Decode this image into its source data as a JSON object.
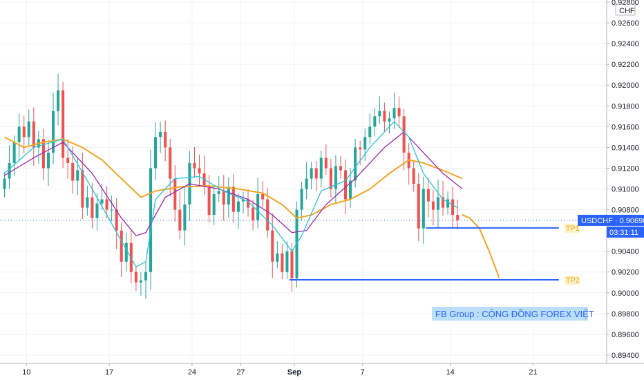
{
  "chart_data": {
    "type": "candlestick",
    "symbol": "USDCHF",
    "currency": "CHF",
    "ylim": [
      0.8932,
      0.9282
    ],
    "y_ticks": [
      "0.92800",
      "0.92600",
      "0.92400",
      "0.92200",
      "0.92000",
      "0.91800",
      "0.91600",
      "0.91400",
      "0.91200",
      "0.91000",
      "0.90800",
      "0.90400",
      "0.90200",
      "0.90000",
      "0.89800",
      "0.89600",
      "0.89400"
    ],
    "x_ticks": [
      {
        "label": "10",
        "bar": 5,
        "bold": false
      },
      {
        "label": "17",
        "bar": 22,
        "bold": false
      },
      {
        "label": "24",
        "bar": 39,
        "bold": false
      },
      {
        "label": "27",
        "bar": 49,
        "bold": false
      },
      {
        "label": "Sep",
        "bar": 60,
        "bold": true
      },
      {
        "label": "7",
        "bar": 74,
        "bold": false
      },
      {
        "label": "14",
        "bar": 92,
        "bold": false
      },
      {
        "label": "21",
        "bar": 109,
        "bold": false
      }
    ],
    "price_label": "USDCHF · 0.90698",
    "price_value": 0.90698,
    "countdown": "03:31:11",
    "colors": {
      "up": "#26a69a",
      "down": "#ef5350",
      "ema_fast": "#26c6da",
      "ema_mid": "#9c27b0",
      "ema_slow": "#f5a623",
      "levels": "#2962ff",
      "label_bg": "#2962ff"
    },
    "closes": [
      0.911,
      0.9125,
      0.9145,
      0.916,
      0.915,
      0.9165,
      0.914,
      0.9148,
      0.912,
      0.9135,
      0.9175,
      0.9195,
      0.913,
      0.9125,
      0.9108,
      0.9118,
      0.9082,
      0.9092,
      0.9072,
      0.9086,
      0.909,
      0.908,
      0.908,
      0.906,
      0.903,
      0.9048,
      0.902,
      0.901,
      0.9012,
      0.902,
      0.912,
      0.915,
      0.9155,
      0.914,
      0.911,
      0.908,
      0.906,
      0.9085,
      0.9125,
      0.912,
      0.9115,
      0.9102,
      0.9075,
      0.9095,
      0.9098,
      0.9085,
      0.9102,
      0.9078,
      0.9088,
      0.909,
      0.9082,
      0.907,
      0.9095,
      0.909,
      0.906,
      0.903,
      0.9038,
      0.902,
      0.904,
      0.9014,
      0.908,
      0.91,
      0.911,
      0.912,
      0.911,
      0.913,
      0.912,
      0.91,
      0.9122,
      0.9118,
      0.909,
      0.9108,
      0.914,
      0.9138,
      0.915,
      0.916,
      0.917,
      0.9175,
      0.9165,
      0.9168,
      0.9178,
      0.917,
      0.9135,
      0.912,
      0.9105,
      0.9062,
      0.91,
      0.9088,
      0.908,
      0.9092,
      0.9082,
      0.909,
      0.9075,
      0.907
    ],
    "ema_fast": [
      [
        0,
        0.9115
      ],
      [
        6,
        0.914
      ],
      [
        12,
        0.9148
      ],
      [
        18,
        0.91
      ],
      [
        24,
        0.905
      ],
      [
        27,
        0.9025
      ],
      [
        29,
        0.903
      ],
      [
        31,
        0.909
      ],
      [
        35,
        0.911
      ],
      [
        40,
        0.9112
      ],
      [
        45,
        0.9098
      ],
      [
        50,
        0.9088
      ],
      [
        55,
        0.9065
      ],
      [
        59,
        0.904
      ],
      [
        61,
        0.9055
      ],
      [
        65,
        0.9098
      ],
      [
        70,
        0.9108
      ],
      [
        75,
        0.914
      ],
      [
        80,
        0.9165
      ],
      [
        83,
        0.915
      ],
      [
        86,
        0.9115
      ],
      [
        90,
        0.909
      ],
      [
        93,
        0.9082
      ]
    ],
    "ema_mid": [
      [
        0,
        0.9113
      ],
      [
        6,
        0.913
      ],
      [
        12,
        0.9145
      ],
      [
        18,
        0.9115
      ],
      [
        24,
        0.9072
      ],
      [
        27,
        0.9055
      ],
      [
        29,
        0.9058
      ],
      [
        33,
        0.9092
      ],
      [
        38,
        0.9105
      ],
      [
        44,
        0.91
      ],
      [
        50,
        0.909
      ],
      [
        55,
        0.9075
      ],
      [
        59,
        0.9058
      ],
      [
        62,
        0.906
      ],
      [
        66,
        0.9085
      ],
      [
        72,
        0.911
      ],
      [
        78,
        0.914
      ],
      [
        82,
        0.9155
      ],
      [
        85,
        0.914
      ],
      [
        90,
        0.9115
      ],
      [
        94,
        0.91
      ]
    ],
    "ema_slow": [
      [
        0,
        0.915
      ],
      [
        4,
        0.914
      ],
      [
        8,
        0.9145
      ],
      [
        12,
        0.9148
      ],
      [
        16,
        0.914
      ],
      [
        20,
        0.9128
      ],
      [
        24,
        0.911
      ],
      [
        28,
        0.9092
      ],
      [
        31,
        0.9098
      ],
      [
        36,
        0.9102
      ],
      [
        42,
        0.9103
      ],
      [
        48,
        0.91
      ],
      [
        53,
        0.9096
      ],
      [
        57,
        0.9085
      ],
      [
        60,
        0.9072
      ],
      [
        63,
        0.9075
      ],
      [
        67,
        0.9085
      ],
      [
        71,
        0.909
      ],
      [
        75,
        0.91
      ],
      [
        79,
        0.9115
      ],
      [
        83,
        0.9128
      ],
      [
        86,
        0.9125
      ],
      [
        90,
        0.9118
      ],
      [
        94,
        0.911
      ]
    ],
    "projection": [
      [
        94.5,
        0.9075
      ],
      [
        96,
        0.9072
      ],
      [
        98,
        0.9062
      ],
      [
        100,
        0.904
      ],
      [
        102,
        0.9015
      ]
    ],
    "levels": [
      {
        "name": "TP1",
        "value": 0.90625,
        "from_bar": 87,
        "to_bar": 115
      },
      {
        "name": "TP2",
        "value": 0.90125,
        "from_bar": 59,
        "to_bar": 115
      }
    ],
    "annotation": "FB Group : CỘNG ĐỒNG FOREX VIỆT"
  }
}
